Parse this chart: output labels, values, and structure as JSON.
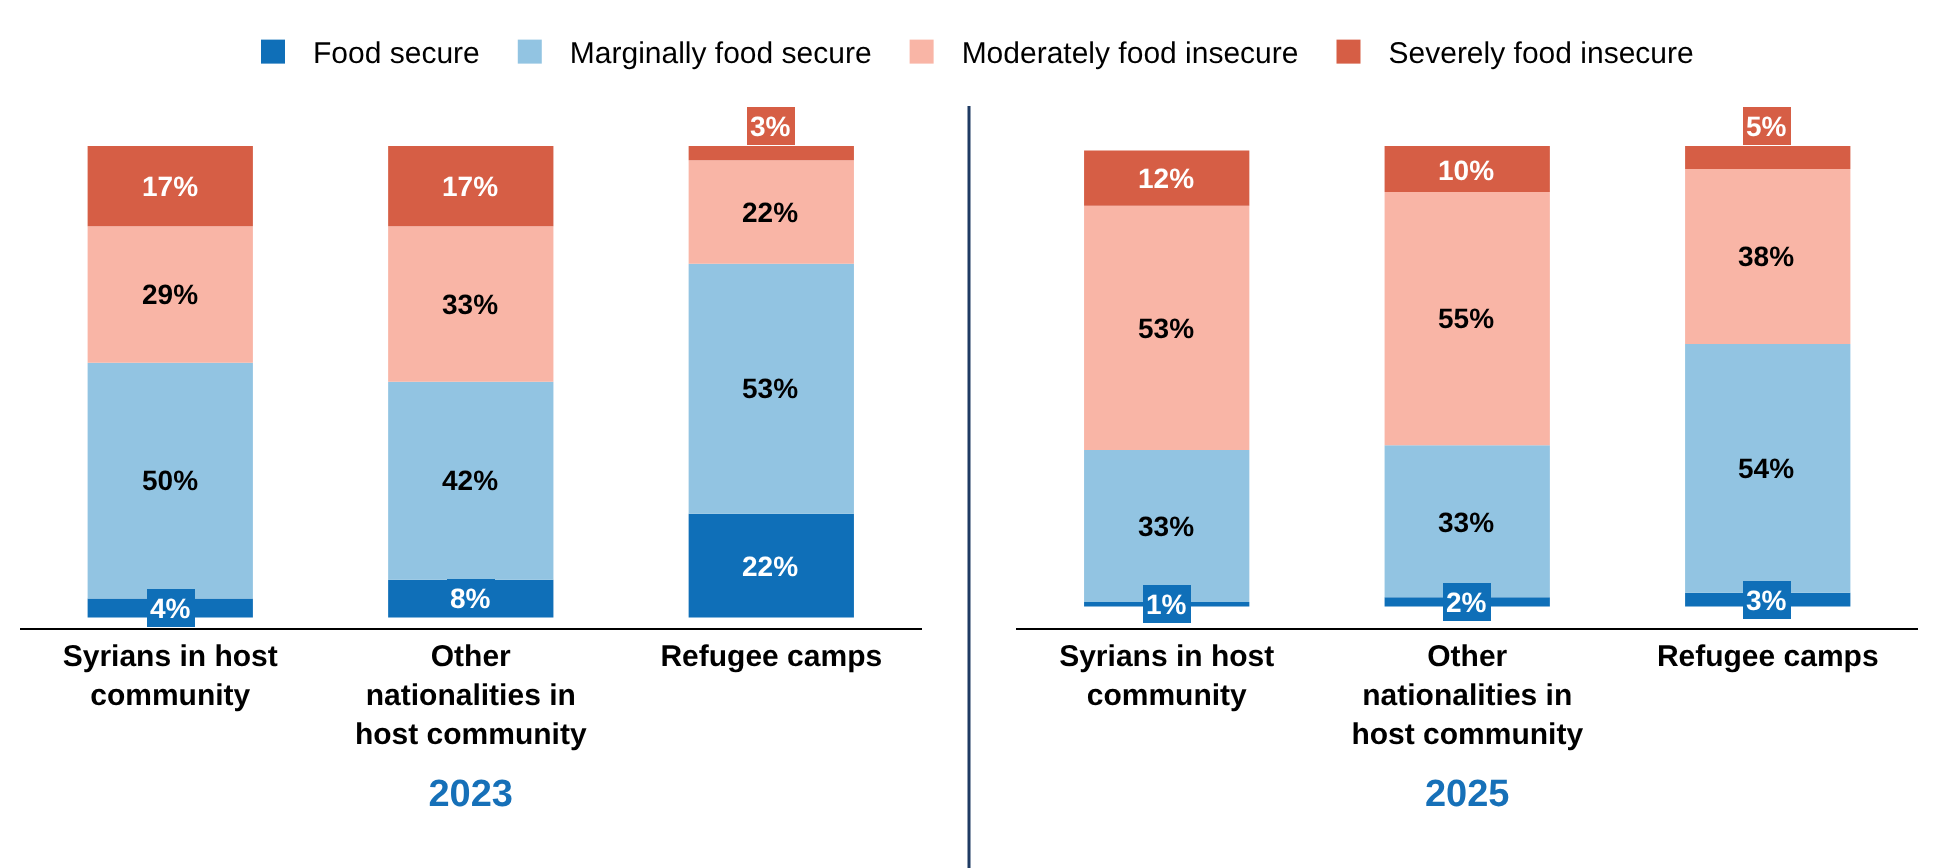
{
  "chart_data": [
    {
      "type": "bar",
      "stacked": true,
      "xlabel": "2023",
      "categories": [
        "Syrians in host community",
        "Other nationalities in host community",
        "Refugee camps"
      ],
      "tick_labels": "x",
      "legend": "top",
      "series": [
        {
          "name": "Food secure",
          "color": "#0f6fb8",
          "values": [
            4,
            8,
            22
          ],
          "value_labels": [
            "4%",
            "8%",
            "22%"
          ]
        },
        {
          "name": "Marginally food secure",
          "color": "#92c4e2",
          "values": [
            50,
            42,
            53
          ],
          "value_labels": [
            "50%",
            "42%",
            "53%"
          ]
        },
        {
          "name": "Moderately food insecure",
          "color": "#f9b5a6",
          "values": [
            29,
            33,
            22
          ],
          "value_labels": [
            "29%",
            "33%",
            "22%"
          ]
        },
        {
          "name": "Severely food insecure",
          "color": "#d65e45",
          "values": [
            17,
            17,
            3
          ],
          "value_labels": [
            "17%",
            "17%",
            "3%"
          ]
        }
      ]
    },
    {
      "type": "bar",
      "stacked": true,
      "xlabel": "2025",
      "categories": [
        "Syrians in host community",
        "Other nationalities in host community",
        "Refugee camps"
      ],
      "tick_labels": "x",
      "series": [
        {
          "color": "#0f6fb8",
          "values": [
            1,
            2,
            3
          ],
          "value_labels": [
            "1%",
            "2%",
            "3%"
          ]
        },
        {
          "color": "#92c4e2",
          "values": [
            33,
            33,
            54
          ],
          "value_labels": [
            "33%",
            "33%",
            "54%"
          ]
        },
        {
          "color": "#f9b5a6",
          "values": [
            53,
            55,
            38
          ],
          "value_labels": [
            "53%",
            "55%",
            "38%"
          ]
        },
        {
          "color": "#d65e45",
          "values": [
            12,
            10,
            5
          ],
          "value_labels": [
            "12%",
            "10%",
            "5%"
          ]
        }
      ]
    }
  ]
}
